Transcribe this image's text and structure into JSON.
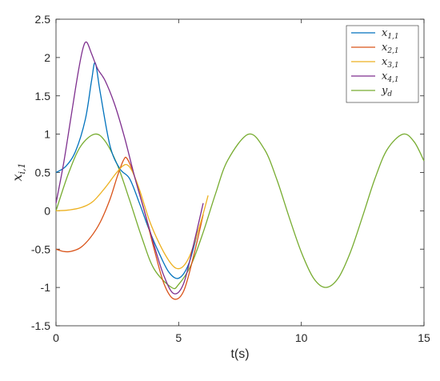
{
  "chart_data": {
    "type": "line",
    "title": "",
    "xlabel": "t(s)",
    "ylabel": "x",
    "ylabel_sub": "i,1",
    "xlim": [
      0,
      15
    ],
    "ylim": [
      -1.5,
      2.5
    ],
    "xticks": [
      0,
      5,
      10,
      15
    ],
    "xtick_labels": [
      "0",
      "5",
      "10",
      "15"
    ],
    "yticks": [
      -1.5,
      -1,
      -0.5,
      0,
      0.5,
      1,
      1.5,
      2,
      2.5
    ],
    "ytick_labels": [
      "-1.5",
      "-1",
      "-0.5",
      "0",
      "0.5",
      "1",
      "1.5",
      "2",
      "2.5"
    ],
    "grid": false,
    "legend_position": "top-right",
    "series": [
      {
        "name": "x",
        "sub": "1,1",
        "color": "#0072BD",
        "x": [
          0,
          0.4,
          0.8,
          1.2,
          1.45,
          1.6,
          1.8,
          2.2,
          2.6,
          3.0,
          3.4,
          3.8,
          4.2,
          4.6,
          5.0,
          5.4,
          5.8
        ],
        "y": [
          0.5,
          0.58,
          0.78,
          1.2,
          1.7,
          1.93,
          1.55,
          0.85,
          0.55,
          0.42,
          0.1,
          -0.25,
          -0.55,
          -0.8,
          -0.88,
          -0.7,
          -0.25
        ]
      },
      {
        "name": "x",
        "sub": "2,1",
        "color": "#D95319",
        "x": [
          0,
          0.3,
          0.6,
          1.0,
          1.4,
          1.8,
          2.2,
          2.5,
          2.75,
          2.9,
          3.2,
          3.6,
          4.0,
          4.4,
          4.8,
          5.2,
          5.6,
          6.0
        ],
        "y": [
          -0.5,
          -0.53,
          -0.53,
          -0.48,
          -0.35,
          -0.15,
          0.15,
          0.45,
          0.66,
          0.68,
          0.45,
          0.0,
          -0.5,
          -0.95,
          -1.15,
          -1.05,
          -0.6,
          -0.05
        ]
      },
      {
        "name": "x",
        "sub": "3,1",
        "color": "#EDB120",
        "x": [
          0,
          0.5,
          1.0,
          1.5,
          2.0,
          2.4,
          2.7,
          2.9,
          3.1,
          3.4,
          3.8,
          4.2,
          4.6,
          4.9,
          5.2,
          5.5,
          5.9,
          6.2
        ],
        "y": [
          0,
          0.01,
          0.04,
          0.12,
          0.3,
          0.47,
          0.58,
          0.6,
          0.52,
          0.28,
          -0.12,
          -0.42,
          -0.65,
          -0.75,
          -0.72,
          -0.55,
          -0.15,
          0.2
        ]
      },
      {
        "name": "x",
        "sub": "4,1",
        "color": "#7E2F8E",
        "x": [
          0,
          0.3,
          0.6,
          0.9,
          1.1,
          1.25,
          1.45,
          1.7,
          2.0,
          2.4,
          2.8,
          3.2,
          3.6,
          4.0,
          4.4,
          4.8,
          5.2,
          5.6,
          6.0
        ],
        "y": [
          0.1,
          0.6,
          1.2,
          1.8,
          2.12,
          2.2,
          2.05,
          1.85,
          1.7,
          1.38,
          0.95,
          0.45,
          0.0,
          -0.45,
          -0.85,
          -1.08,
          -0.95,
          -0.45,
          0.1
        ]
      },
      {
        "name": "y",
        "sub": "d",
        "color": "#77AC30",
        "x": [
          0,
          0.5,
          1.0,
          1.57,
          2.0,
          2.5,
          3.0,
          3.5,
          4.0,
          4.71,
          5.0,
          5.5,
          6.0,
          6.5,
          7.0,
          7.85,
          8.5,
          9.0,
          9.5,
          10.0,
          10.5,
          10.99,
          11.5,
          12.0,
          12.5,
          13.0,
          13.5,
          14.14,
          14.6,
          15.0
        ],
        "y": [
          0,
          0.48,
          0.84,
          1.0,
          0.91,
          0.6,
          0.14,
          -0.35,
          -0.76,
          -1.0,
          -0.96,
          -0.71,
          -0.28,
          0.22,
          0.66,
          1.0,
          0.8,
          0.41,
          -0.08,
          -0.54,
          -0.88,
          -1.0,
          -0.88,
          -0.54,
          -0.07,
          0.42,
          0.8,
          1.0,
          0.9,
          0.65
        ]
      }
    ]
  }
}
